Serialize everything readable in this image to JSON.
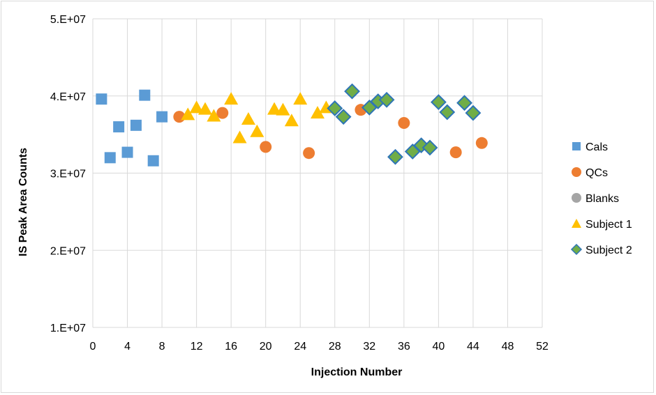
{
  "chart_data": {
    "type": "scatter",
    "title": "",
    "xlabel": "Injection Number",
    "ylabel": "IS Peak Area Counts",
    "xlim": [
      0,
      52
    ],
    "ylim": [
      10000000,
      50000000
    ],
    "x_ticks": [
      0,
      4,
      8,
      12,
      16,
      20,
      24,
      28,
      32,
      36,
      40,
      44,
      48,
      52
    ],
    "x_tick_labels": [
      "0",
      "4",
      "8",
      "12",
      "16",
      "20",
      "24",
      "28",
      "32",
      "36",
      "40",
      "44",
      "48",
      "52"
    ],
    "y_ticks": [
      10000000,
      20000000,
      30000000,
      40000000,
      50000000
    ],
    "y_tick_labels": [
      "1.E+07",
      "2.E+07",
      "3.E+07",
      "4.E+07",
      "5.E+07"
    ],
    "grid": {
      "vertical": true,
      "horizontal": true
    },
    "legend_position": "right",
    "series": [
      {
        "name": "Cals",
        "marker": "square",
        "color": "#5b9bd5",
        "points": [
          [
            1,
            39600000
          ],
          [
            2,
            32000000
          ],
          [
            3,
            36000000
          ],
          [
            4,
            32700000
          ],
          [
            5,
            36200000
          ],
          [
            6,
            40100000
          ],
          [
            7,
            31600000
          ],
          [
            8,
            37300000
          ]
        ]
      },
      {
        "name": "QCs",
        "marker": "circle",
        "color": "#ed7d31",
        "points": [
          [
            10,
            37300000
          ],
          [
            15,
            37800000
          ],
          [
            20,
            33400000
          ],
          [
            25,
            32600000
          ],
          [
            31,
            38200000
          ],
          [
            36,
            36500000
          ],
          [
            42,
            32700000
          ],
          [
            45,
            33900000
          ]
        ]
      },
      {
        "name": "Blanks",
        "marker": "circle",
        "color": "#a5a5a5",
        "points": []
      },
      {
        "name": "Subject 1",
        "marker": "triangle",
        "color": "#ffc000",
        "points": [
          [
            11,
            37600000
          ],
          [
            12,
            38500000
          ],
          [
            13,
            38300000
          ],
          [
            14,
            37400000
          ],
          [
            16,
            39600000
          ],
          [
            17,
            34600000
          ],
          [
            18,
            37000000
          ],
          [
            19,
            35400000
          ],
          [
            21,
            38300000
          ],
          [
            22,
            38200000
          ],
          [
            23,
            36800000
          ],
          [
            24,
            39600000
          ],
          [
            26,
            37800000
          ],
          [
            27,
            38500000
          ]
        ]
      },
      {
        "name": "Subject 2",
        "marker": "diamond",
        "color": "#70ad47",
        "stroke": "#2e75b6",
        "points": [
          [
            28,
            38400000
          ],
          [
            29,
            37300000
          ],
          [
            30,
            40600000
          ],
          [
            32,
            38500000
          ],
          [
            33,
            39300000
          ],
          [
            34,
            39500000
          ],
          [
            35,
            32100000
          ],
          [
            37,
            32800000
          ],
          [
            38,
            33600000
          ],
          [
            39,
            33300000
          ],
          [
            40,
            39200000
          ],
          [
            41,
            37900000
          ],
          [
            43,
            39100000
          ],
          [
            44,
            37800000
          ]
        ]
      }
    ]
  }
}
